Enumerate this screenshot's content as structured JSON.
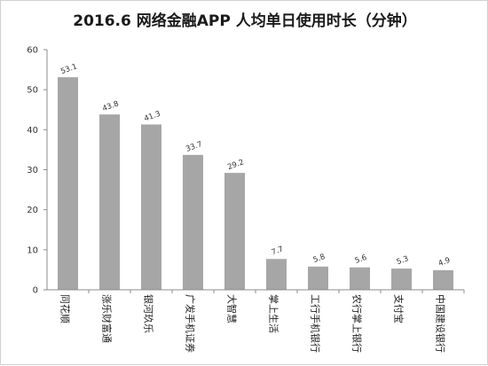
{
  "chart_data": {
    "type": "bar",
    "title": "2016.6 网络金融APP 人均单日使用时长（分钟）",
    "xlabel": "",
    "ylabel": "",
    "ylim": [
      0,
      60
    ],
    "yticks": [
      0,
      10,
      20,
      30,
      40,
      50,
      60
    ],
    "grid": false,
    "legend": "none",
    "bar_color": "#a6a6a6",
    "categories": [
      "同花顺",
      "涨乐财富通",
      "银河玖乐",
      "广发手机证券",
      "大智慧",
      "掌上生活",
      "工行手机银行",
      "农行掌上银行",
      "支付宝",
      "中国建设银行"
    ],
    "values": [
      53.1,
      43.8,
      41.3,
      33.7,
      29.2,
      7.7,
      5.8,
      5.6,
      5.3,
      4.9
    ],
    "value_labels": [
      "53.1",
      "43.8",
      "41.3",
      "33.7",
      "29.2",
      "7.7",
      "5.8",
      "5.6",
      "5.3",
      "4.9"
    ]
  }
}
